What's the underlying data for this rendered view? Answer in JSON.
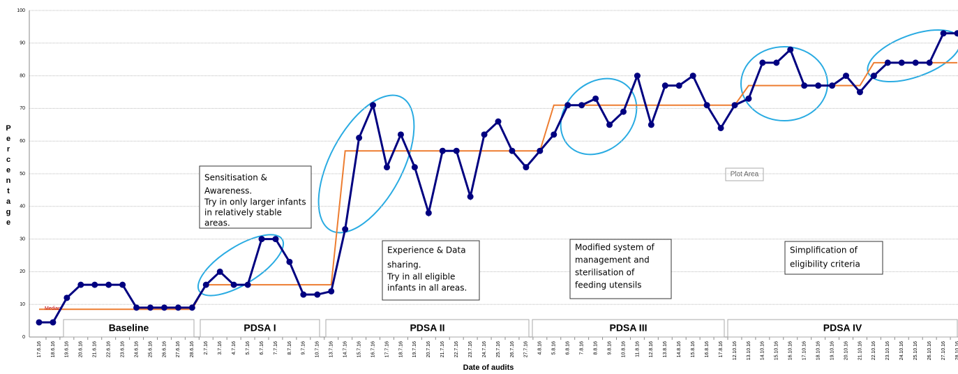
{
  "chart_data": {
    "type": "line",
    "x_label": "Date of audits",
    "y_label": "Percentage",
    "categories": [
      "17.6.16",
      "18.6.16",
      "19.6.16",
      "20.6.16",
      "21.6.16",
      "22.6.16",
      "23.6.16",
      "24.6.16",
      "25.6.16",
      "26.6.16",
      "27.6.16",
      "28.6.16",
      "2.7.16",
      "3.7.16",
      "4.7.16",
      "5.7.16",
      "6.7.16",
      "7.7.16",
      "8.7.16",
      "9.7.16",
      "10.7.16",
      "13.7.16",
      "14.7.16",
      "15.7.16",
      "16.7.16",
      "17.7.16",
      "18.7.16",
      "19.7.16",
      "20.7.16",
      "21.7.16",
      "22.7.16",
      "23.7.16",
      "24.7.16",
      "25.7.16",
      "26.7.16",
      "27.7.16",
      "4.8.16",
      "5.8.16",
      "6.8.16",
      "7.8.16",
      "8.8.16",
      "9.8.16",
      "10.8.16",
      "11.8.16",
      "12.8.16",
      "13.8.16",
      "14.8.16",
      "15.8.16",
      "16.8.16",
      "17.8.16",
      "12.10.16",
      "13.10.16",
      "14.10.16",
      "15.10.16",
      "16.10.16",
      "17.10.16",
      "18.10.16",
      "19.10.16",
      "20.10.16",
      "21.10.16",
      "22.10.16",
      "23.10.16",
      "24.10.16",
      "25.10.16",
      "26.10.16",
      "27.10.16",
      "28.10.16"
    ],
    "series": [
      {
        "name": "Percentage",
        "color": "#000080",
        "markers": true,
        "values": [
          4.5,
          4.5,
          12,
          16,
          16,
          16,
          16,
          9,
          9,
          9,
          9,
          9,
          16,
          20,
          16,
          16,
          30,
          30,
          23,
          13,
          13,
          14,
          33,
          61,
          71,
          52,
          62,
          52,
          38,
          57,
          57,
          43,
          62,
          66,
          57,
          52,
          57,
          62,
          71,
          71,
          73,
          65,
          69,
          80,
          65,
          77,
          77,
          80,
          71,
          64,
          71,
          73,
          84,
          84,
          88,
          77,
          77,
          77,
          80,
          75,
          80,
          84,
          84,
          84,
          84,
          93,
          93
        ]
      },
      {
        "name": "Median",
        "color": "#ed7d31",
        "label_color": "#c00000",
        "markers": false,
        "values": [
          8.5,
          8.5,
          8.5,
          8.5,
          8.5,
          8.5,
          8.5,
          8.5,
          8.5,
          8.5,
          8.5,
          8.5,
          16,
          16,
          16,
          16,
          16,
          16,
          16,
          16,
          16,
          16,
          57,
          57,
          57,
          57,
          57,
          57,
          57,
          57,
          57,
          57,
          57,
          57,
          57,
          57,
          57,
          71,
          71,
          71,
          71,
          71,
          71,
          71,
          71,
          71,
          71,
          71,
          71,
          71,
          71,
          77,
          77,
          77,
          77,
          77,
          77,
          77,
          77,
          77,
          84,
          84,
          84,
          84,
          84,
          84,
          84
        ]
      }
    ],
    "ylim": [
      0,
      100
    ],
    "yticks": [
      0,
      10,
      20,
      30,
      40,
      50,
      60,
      70,
      80,
      90,
      100
    ],
    "grid": true,
    "phases": [
      "Baseline",
      "PDSA I",
      "PDSA II",
      "PDSA III",
      "PDSA IV"
    ],
    "annotations": [
      [
        "Sensitisation &",
        "Awareness.",
        "Try in only larger infants",
        "in relatively stable",
        "areas."
      ],
      [
        "Experience & Data",
        "sharing.",
        "Try in all eligible",
        "infants in all areas."
      ],
      [
        "Modified system of",
        "management and",
        "sterilisation of",
        "feeding utensils"
      ],
      [
        "Simplification of",
        "eligibility criteria"
      ]
    ],
    "plot_area_label": "Plot Area"
  }
}
